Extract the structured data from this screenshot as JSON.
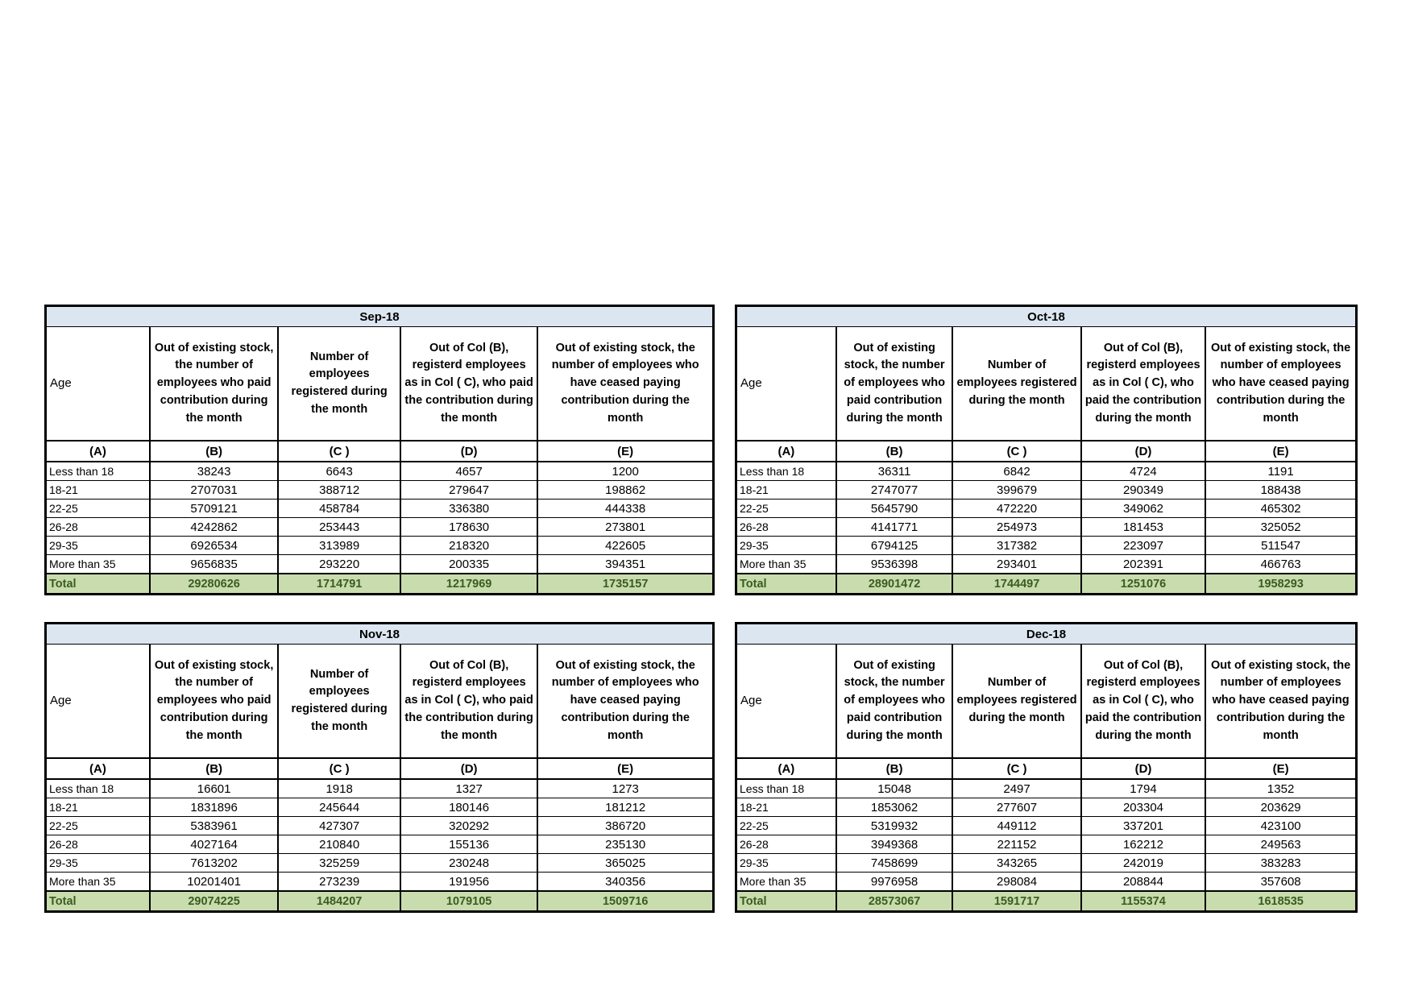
{
  "column_letters": [
    "(A)",
    "(B)",
    "(C )",
    "(D)",
    "(E)"
  ],
  "column_headers": [
    "Age",
    "Out of existing stock, the number of employees who paid contribution during the month",
    "Number of employees registered during the month",
    "Out of Col (B), registerd employees as in Col ( C), who paid the contribution during the month",
    "Out of existing stock, the number of employees who have ceased paying contribution during the month"
  ],
  "age_groups": [
    "Less than 18",
    "18-21",
    "22-25",
    "26-28",
    "29-35",
    "More than 35"
  ],
  "total_label": "Total",
  "tables": [
    {
      "title": "Sep-18",
      "rows": [
        [
          "Less than 18",
          "38243",
          "6643",
          "4657",
          "1200"
        ],
        [
          "18-21",
          "2707031",
          "388712",
          "279647",
          "198862"
        ],
        [
          "22-25",
          "5709121",
          "458784",
          "336380",
          "444338"
        ],
        [
          "26-28",
          "4242862",
          "253443",
          "178630",
          "273801"
        ],
        [
          "29-35",
          "6926534",
          "313989",
          "218320",
          "422605"
        ],
        [
          "More than 35",
          "9656835",
          "293220",
          "200335",
          "394351"
        ]
      ],
      "total": [
        "Total",
        "29280626",
        "1714791",
        "1217969",
        "1735157"
      ]
    },
    {
      "title": "Oct-18",
      "rows": [
        [
          "Less than 18",
          "36311",
          "6842",
          "4724",
          "1191"
        ],
        [
          "18-21",
          "2747077",
          "399679",
          "290349",
          "188438"
        ],
        [
          "22-25",
          "5645790",
          "472220",
          "349062",
          "465302"
        ],
        [
          "26-28",
          "4141771",
          "254973",
          "181453",
          "325052"
        ],
        [
          "29-35",
          "6794125",
          "317382",
          "223097",
          "511547"
        ],
        [
          "More than 35",
          "9536398",
          "293401",
          "202391",
          "466763"
        ]
      ],
      "total": [
        "Total",
        "28901472",
        "1744497",
        "1251076",
        "1958293"
      ]
    },
    {
      "title": "Nov-18",
      "rows": [
        [
          "Less than 18",
          "16601",
          "1918",
          "1327",
          "1273"
        ],
        [
          "18-21",
          "1831896",
          "245644",
          "180146",
          "181212"
        ],
        [
          "22-25",
          "5383961",
          "427307",
          "320292",
          "386720"
        ],
        [
          "26-28",
          "4027164",
          "210840",
          "155136",
          "235130"
        ],
        [
          "29-35",
          "7613202",
          "325259",
          "230248",
          "365025"
        ],
        [
          "More than 35",
          "10201401",
          "273239",
          "191956",
          "340356"
        ]
      ],
      "total": [
        "Total",
        "29074225",
        "1484207",
        "1079105",
        "1509716"
      ]
    },
    {
      "title": "Dec-18",
      "rows": [
        [
          "Less than 18",
          "15048",
          "2497",
          "1794",
          "1352"
        ],
        [
          "18-21",
          "1853062",
          "277607",
          "203304",
          "203629"
        ],
        [
          "22-25",
          "5319932",
          "449112",
          "337201",
          "423100"
        ],
        [
          "26-28",
          "3949368",
          "221152",
          "162212",
          "249563"
        ],
        [
          "29-35",
          "7458699",
          "343265",
          "242019",
          "383283"
        ],
        [
          "More than 35",
          "9976958",
          "298084",
          "208844",
          "357608"
        ]
      ],
      "total": [
        "Total",
        "28573067",
        "1591717",
        "1155374",
        "1618535"
      ]
    }
  ],
  "colors": {
    "title_bar_bg": "#dce6f1",
    "total_row_bg": "#c9dcae",
    "total_row_text": "#3a5c1f",
    "border": "#000000"
  }
}
